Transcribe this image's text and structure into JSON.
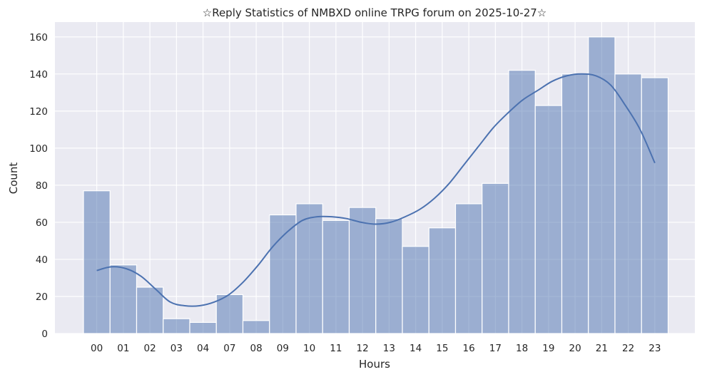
{
  "chart_data": {
    "type": "bar",
    "title": "☆Reply Statistics of NMBXD online TRPG forum on 2025-10-27☆",
    "xlabel": "Hours",
    "ylabel": "Count",
    "categories": [
      "00",
      "01",
      "02",
      "03",
      "04",
      "07",
      "08",
      "09",
      "10",
      "11",
      "12",
      "13",
      "14",
      "15",
      "16",
      "17",
      "18",
      "19",
      "20",
      "21",
      "22",
      "23"
    ],
    "values": [
      77,
      37,
      25,
      8,
      6,
      21,
      7,
      64,
      70,
      61,
      68,
      62,
      47,
      57,
      70,
      81,
      142,
      123,
      140,
      160,
      140,
      138
    ],
    "ylim": [
      0,
      168
    ],
    "yticks": [
      0,
      20,
      40,
      60,
      80,
      100,
      120,
      140,
      160
    ],
    "kde": [
      34,
      36,
      35,
      31,
      24,
      17,
      15,
      15,
      17,
      21,
      28,
      37,
      47,
      55,
      61,
      63,
      63,
      62,
      60,
      59,
      60,
      63,
      67,
      73,
      81,
      91,
      101,
      111,
      119,
      126,
      131,
      136,
      139,
      140,
      139,
      134,
      123,
      110,
      92
    ],
    "grid": true,
    "colors": {
      "bar": "#4C72B0",
      "kde": "#4C72B0",
      "background": "#EAEAF2"
    }
  }
}
